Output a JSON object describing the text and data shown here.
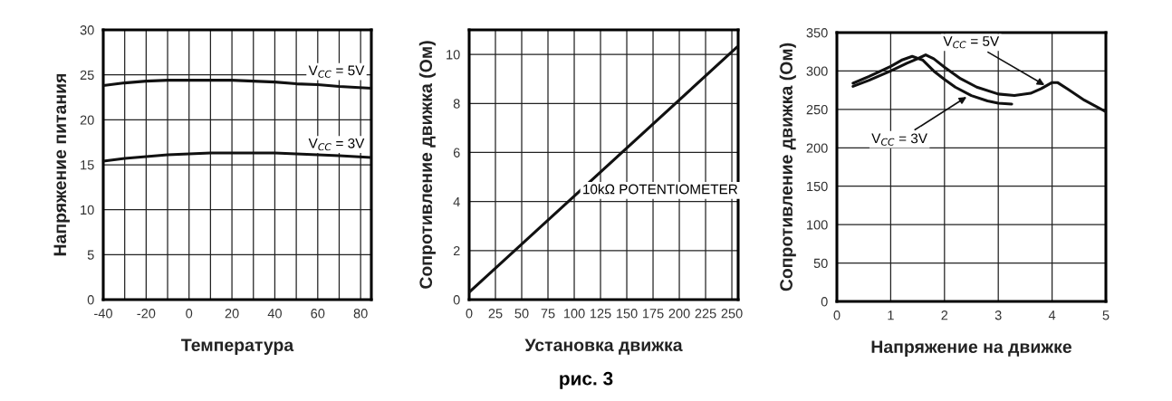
{
  "chart_data": [
    {
      "type": "line",
      "xlabel": "Температура",
      "ylabel": "Напряжение питания",
      "xlim": [
        -40,
        85
      ],
      "ylim": [
        0,
        30
      ],
      "xticks": [
        -40,
        {
          "value": -30,
          "label": null
        },
        -20,
        {
          "value": -10,
          "label": null
        },
        0,
        {
          "value": 10,
          "label": null
        },
        20,
        {
          "value": 30,
          "label": null
        },
        40,
        {
          "value": 50,
          "label": null
        },
        60,
        {
          "value": 70,
          "label": null
        },
        80
      ],
      "yticks": [
        0,
        5,
        10,
        15,
        20,
        25,
        30
      ],
      "grid": true,
      "legend": false,
      "line_style": "solid",
      "marker": "none",
      "series": [
        {
          "color": "#111111",
          "x": [
            -40,
            -30,
            -20,
            -10,
            0,
            10,
            20,
            30,
            40,
            50,
            60,
            70,
            85
          ],
          "values": [
            23.8,
            24.1,
            24.3,
            24.4,
            24.4,
            24.4,
            24.4,
            24.3,
            24.2,
            24.0,
            23.9,
            23.7,
            23.5
          ]
        },
        {
          "color": "#111111",
          "x": [
            -40,
            -30,
            -20,
            -10,
            0,
            10,
            20,
            30,
            40,
            50,
            60,
            70,
            85
          ],
          "values": [
            15.4,
            15.7,
            15.9,
            16.1,
            16.2,
            16.3,
            16.3,
            16.3,
            16.3,
            16.2,
            16.1,
            16.0,
            15.8
          ]
        }
      ],
      "annotations": [
        "V$_{CC}$ = 5V",
        "V$_{CC}$ = 3V"
      ]
    },
    {
      "type": "line",
      "xlabel": "Установка движка",
      "ylabel": "Сопротивление движка (Ом)",
      "xlim": [
        0,
        256
      ],
      "ylim": [
        0,
        11
      ],
      "xticks": [
        0,
        25,
        50,
        75,
        100,
        125,
        150,
        175,
        200,
        225,
        250
      ],
      "yticks": [
        0,
        2,
        4,
        6,
        8,
        10
      ],
      "grid": true,
      "legend": false,
      "line_style": "solid",
      "marker": "none",
      "series": [
        {
          "color": "#111111",
          "x": [
            0,
            255
          ],
          "values": [
            0.3,
            10.3
          ]
        }
      ],
      "annotations": [
        "10kΩ POTENTIOMETER",
        "рис. 3"
      ]
    },
    {
      "type": "line",
      "xlabel": "Напряжение на движке",
      "ylabel": "Сопротивление движка (Ом)",
      "xlim": [
        0,
        5
      ],
      "ylim": [
        0,
        350
      ],
      "xticks": [
        0,
        1,
        2,
        3,
        4,
        5
      ],
      "yticks": [
        0,
        50,
        100,
        150,
        200,
        250,
        300,
        350
      ],
      "grid": true,
      "legend": false,
      "line_style": "solid",
      "marker": "none",
      "series": [
        {
          "color": "#111111",
          "x": [
            0.3,
            0.6,
            1.0,
            1.3,
            1.5,
            1.65,
            1.8,
            2.0,
            2.3,
            2.6,
            3.0,
            3.3,
            3.6,
            3.8,
            4.0,
            4.1,
            4.3,
            4.6,
            5.0
          ],
          "values": [
            280,
            288,
            300,
            310,
            316,
            321,
            316,
            305,
            290,
            279,
            270,
            268,
            271,
            277,
            285,
            285,
            276,
            262,
            247
          ]
        },
        {
          "color": "#111111",
          "x": [
            0.3,
            0.6,
            1.0,
            1.2,
            1.4,
            1.6,
            1.8,
            2.0,
            2.2,
            2.5,
            2.8,
            3.0,
            3.25
          ],
          "values": [
            284,
            293,
            306,
            314,
            319,
            314,
            300,
            289,
            279,
            268,
            261,
            258,
            257
          ]
        }
      ],
      "annotations": [
        {
          "text": "V$_{CC}$ = 5V",
          "x": 3.9,
          "y": 280
        },
        {
          "text": "V$_{CC}$ = 3V",
          "x": 2.45,
          "y": 268
        }
      ]
    }
  ]
}
